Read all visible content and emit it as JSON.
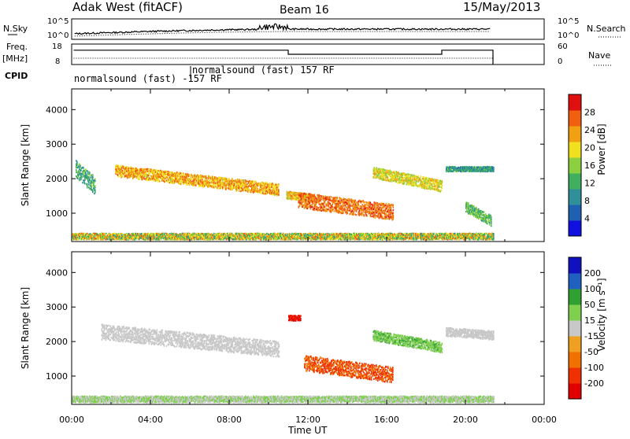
{
  "header": {
    "station": "Adak West (fitACF)",
    "beam": "Beam 16",
    "date": "15/May/2013"
  },
  "panels": {
    "nsky": {
      "label": "N.Sky",
      "ticks": [
        "10^5",
        "10^0"
      ]
    },
    "nsearch": {
      "label": "N.Search",
      "ticks": [
        "10^5",
        "10^0"
      ]
    },
    "freq": {
      "label_line1": "Freq.",
      "label_line2": "[MHz]",
      "ticks": [
        "18",
        "8"
      ]
    },
    "nave": {
      "label": "Nave",
      "ticks": [
        "60",
        "0"
      ]
    },
    "cpid": {
      "label": "CPID",
      "segments": [
        {
          "text": "normalsound (fast) -157 RF",
          "start_hour": 0,
          "end_hour": 6
        },
        {
          "text": "normalsound (fast) 157 RF",
          "start_hour": 6,
          "end_hour": 21.4
        }
      ]
    }
  },
  "time_axis": {
    "label": "Time UT",
    "ticks": [
      "00:00",
      "04:00",
      "08:00",
      "12:00",
      "16:00",
      "20:00",
      "00:00"
    ]
  },
  "chart_data": [
    {
      "type": "heatmap",
      "name": "power",
      "ylabel": "Slant Range [km]",
      "ylim": [
        180,
        4600
      ],
      "yticks": [
        1000,
        2000,
        3000,
        4000
      ],
      "xlim": [
        0,
        24
      ],
      "colorbar": {
        "label": "Power [dB]",
        "ticks": [
          "28",
          "24",
          "20",
          "16",
          "12",
          "8",
          "4"
        ],
        "range": [
          0,
          32
        ],
        "colors": [
          "#1010e0",
          "#2060b0",
          "#30909a",
          "#40b060",
          "#8cd040",
          "#f0e020",
          "#f0a010",
          "#f06010",
          "#e01010"
        ]
      },
      "regions": [
        {
          "t0": 2.2,
          "t1": 10.5,
          "r_start": 2250,
          "r_end": 1700,
          "dr": 330,
          "lvl_lo": 0.55,
          "lvl_hi": 0.85
        },
        {
          "t0": 10.9,
          "t1": 12.3,
          "r_start": 1550,
          "r_end": 1450,
          "dr": 220,
          "lvl_lo": 0.5,
          "lvl_hi": 0.8
        },
        {
          "t0": 11.5,
          "t1": 16.3,
          "r_start": 1400,
          "r_end": 1050,
          "dr": 450,
          "lvl_lo": 0.7,
          "lvl_hi": 0.92
        },
        {
          "t0": 15.3,
          "t1": 18.8,
          "r_start": 2200,
          "r_end": 1800,
          "dr": 320,
          "lvl_lo": 0.45,
          "lvl_hi": 0.75
        },
        {
          "t0": 19.0,
          "t1": 21.4,
          "r_start": 2300,
          "r_end": 2300,
          "dr": 140,
          "lvl_lo": 0.2,
          "lvl_hi": 0.45
        },
        {
          "t0": 20.0,
          "t1": 21.3,
          "r_start": 1200,
          "r_end": 800,
          "dr": 300,
          "lvl_lo": 0.3,
          "lvl_hi": 0.55
        },
        {
          "t0": 0.2,
          "t1": 1.2,
          "r_start": 2300,
          "r_end": 1800,
          "dr": 500,
          "lvl_lo": 0.25,
          "lvl_hi": 0.5
        },
        {
          "t0": 0.0,
          "t1": 21.4,
          "r_start": 350,
          "r_end": 350,
          "dr": 180,
          "lvl_lo": 0.3,
          "lvl_hi": 0.85
        }
      ]
    },
    {
      "type": "heatmap",
      "name": "velocity",
      "ylabel": "Slant Range [km]",
      "ylim": [
        180,
        4600
      ],
      "yticks": [
        1000,
        2000,
        3000,
        4000
      ],
      "xlim": [
        0,
        24
      ],
      "colorbar": {
        "label": "Velocity [m s⁻¹]",
        "ticks": [
          "200",
          "100",
          "50",
          "15",
          "-15",
          "-50",
          "-100",
          "-200"
        ],
        "range": [
          -250,
          250
        ],
        "colors": [
          "#e00000",
          "#f03000",
          "#f07000",
          "#f0a020",
          "#c8c8c8",
          "#80d050",
          "#30a030",
          "#2060c0",
          "#1010c0"
        ]
      },
      "regions": [
        {
          "t0": 1.5,
          "t1": 10.5,
          "r_start": 2300,
          "r_end": 1800,
          "dr": 450,
          "lvl_lo": 0.45,
          "lvl_hi": 0.55
        },
        {
          "t0": 11.8,
          "t1": 16.3,
          "r_start": 1400,
          "r_end": 1050,
          "dr": 450,
          "lvl_lo": 0.12,
          "lvl_hi": 0.3
        },
        {
          "t0": 15.3,
          "t1": 18.8,
          "r_start": 2200,
          "r_end": 1850,
          "dr": 300,
          "lvl_lo": 0.55,
          "lvl_hi": 0.7
        },
        {
          "t0": 19.0,
          "t1": 21.4,
          "r_start": 2300,
          "r_end": 2200,
          "dr": 250,
          "lvl_lo": 0.45,
          "lvl_hi": 0.55
        },
        {
          "t0": 11.0,
          "t1": 11.6,
          "r_start": 2700,
          "r_end": 2700,
          "dr": 150,
          "lvl_lo": 0.0,
          "lvl_hi": 0.15
        },
        {
          "t0": 0.0,
          "t1": 21.4,
          "r_start": 350,
          "r_end": 350,
          "dr": 180,
          "lvl_lo": 0.45,
          "lvl_hi": 0.65
        }
      ]
    }
  ]
}
